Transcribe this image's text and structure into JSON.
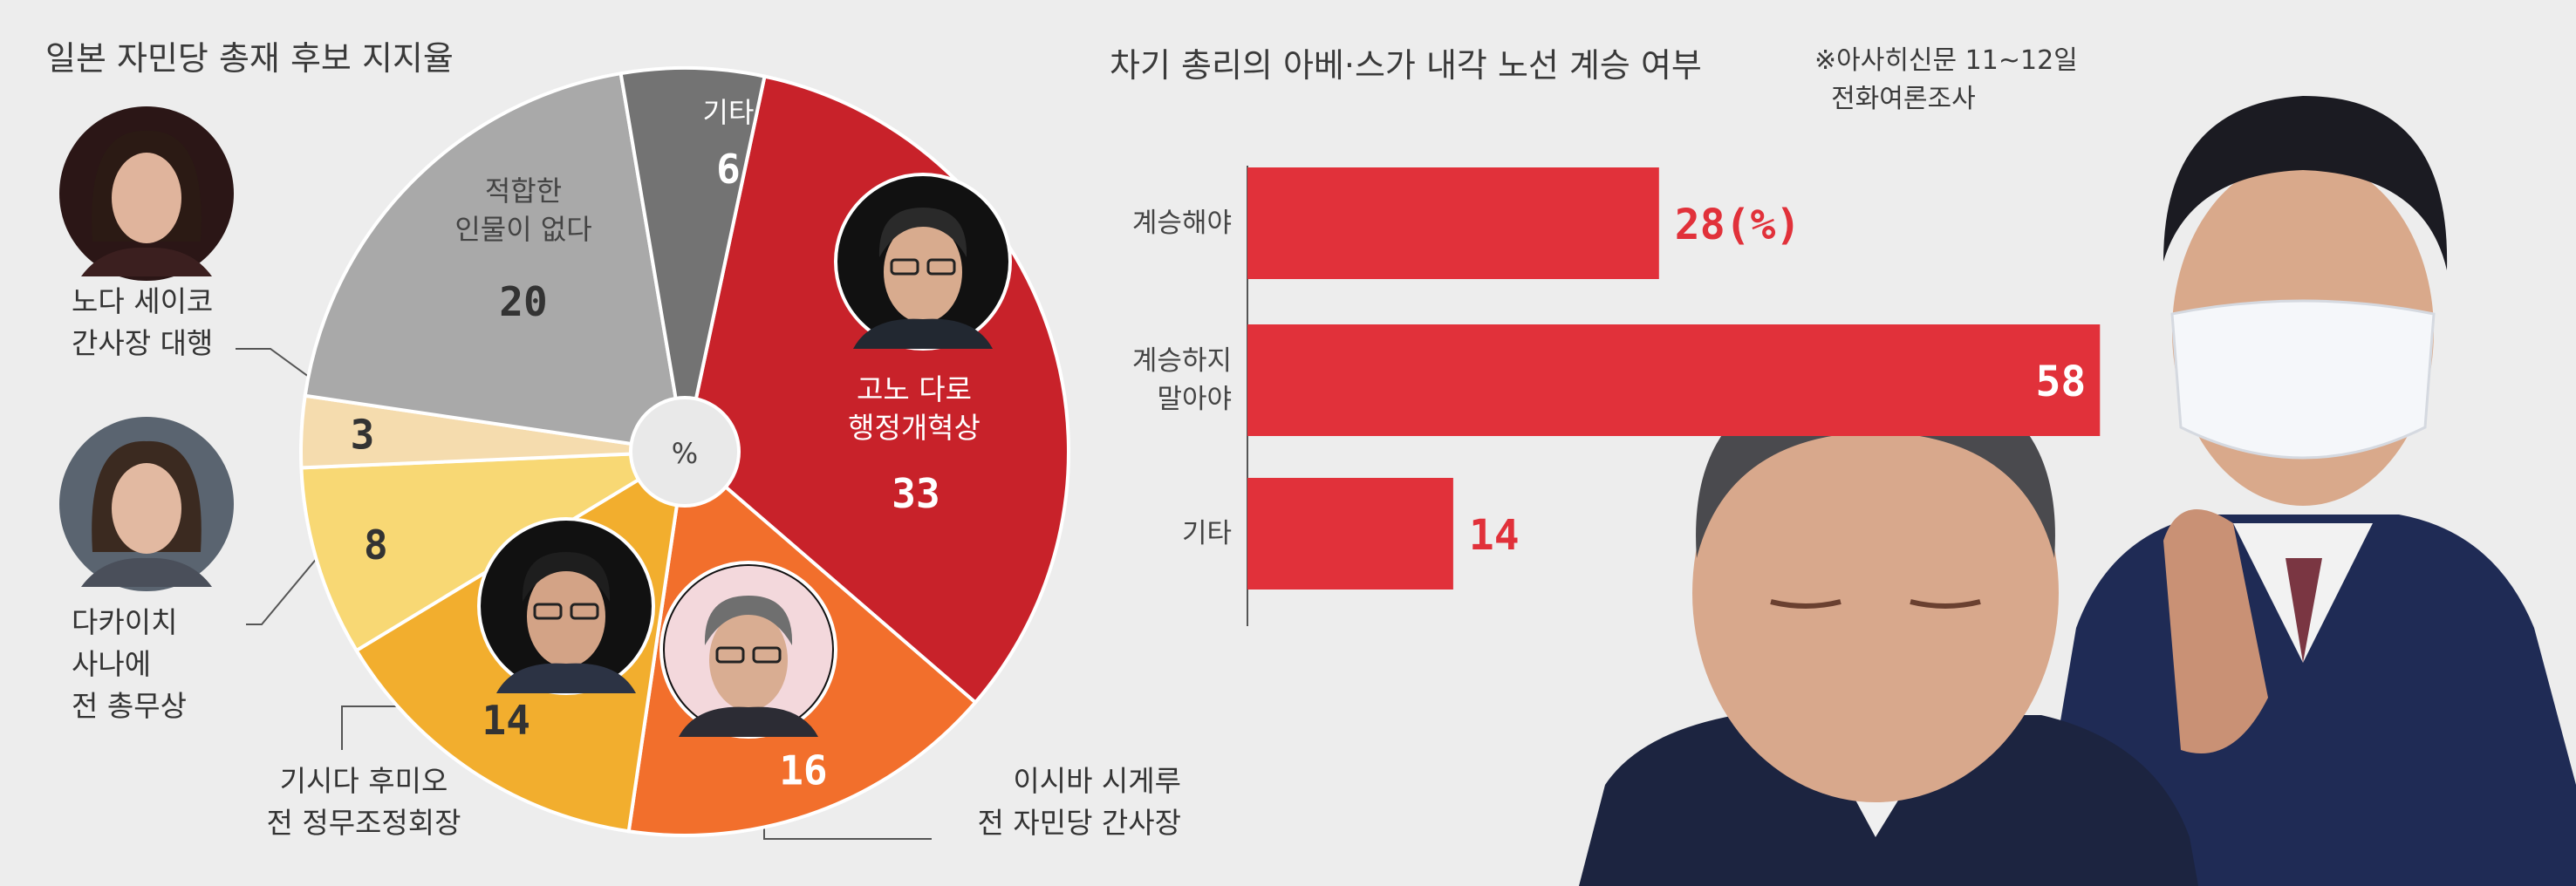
{
  "pie_title": "일본 자민당 총재 후보 지지율",
  "bar_title": "차기 총리의 아베·스가 내각 노선 계승 여부",
  "source_note": "※아사히신문 11~12일\n  전화여론조사",
  "colors": {
    "kono": "#c8222a",
    "ishiba": "#f26f2c",
    "kishida": "#f2ae2e",
    "takaichi": "#f8d874",
    "noda": "#f5dcae",
    "none": "#a9a9a9",
    "other": "#737373",
    "bar": "#e1313a",
    "background": "#ededed"
  },
  "candidates": {
    "noda": "노다 세이코\n간사장 대행",
    "takaichi": "다카이치\n사나에\n전 총무상",
    "kishida": "기시다 후미오\n전 정무조정회장",
    "ishiba": "이시바 시게루\n전 자민당 간사장",
    "kono": "고노 다로\n행정개혁상"
  },
  "chart_data": [
    {
      "type": "pie",
      "title": "일본 자민당 총재 후보 지지율",
      "center_label": "%",
      "slices": [
        {
          "key": "kono",
          "label": "고노 다로 행정개혁상",
          "value": 33,
          "color": "#c8222a"
        },
        {
          "key": "ishiba",
          "label": "이시바 시게루 전 자민당 간사장",
          "value": 16,
          "color": "#f26f2c"
        },
        {
          "key": "kishida",
          "label": "기시다 후미오 전 정무조정회장",
          "value": 14,
          "color": "#f2ae2e"
        },
        {
          "key": "takaichi",
          "label": "다카이치 사나에 전 총무상",
          "value": 8,
          "color": "#f8d874"
        },
        {
          "key": "noda",
          "label": "노다 세이코 간사장 대행",
          "value": 3,
          "color": "#f5dcae"
        },
        {
          "key": "none",
          "label": "적합한\n인물이 없다",
          "value": 20,
          "color": "#a9a9a9"
        },
        {
          "key": "other",
          "label": "기타",
          "value": 6,
          "color": "#737373"
        }
      ]
    },
    {
      "type": "bar",
      "orientation": "horizontal",
      "title": "차기 총리의 아베·스가 내각 노선 계승 여부",
      "categories": [
        "계승해야",
        "계승하지\n말아야",
        "기타"
      ],
      "values": [
        28,
        58,
        14
      ],
      "value_labels": [
        "28(%)",
        "58",
        "14"
      ],
      "unit": "%",
      "color": "#e1313a"
    }
  ]
}
